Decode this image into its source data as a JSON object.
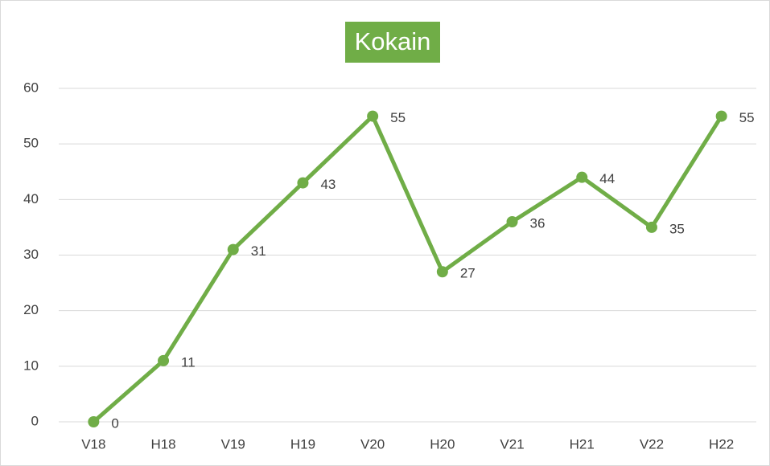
{
  "chart_data": {
    "type": "line",
    "title": "Kokain",
    "categories": [
      "V18",
      "H18",
      "V19",
      "H19",
      "V20",
      "H20",
      "V21",
      "H21",
      "V22",
      "H22"
    ],
    "values": [
      0,
      11,
      31,
      43,
      55,
      27,
      36,
      44,
      35,
      55
    ],
    "color": "#70ad47",
    "ylim": [
      0,
      60
    ],
    "yticks": [
      0,
      10,
      20,
      30,
      40,
      50,
      60
    ],
    "grid": true
  }
}
